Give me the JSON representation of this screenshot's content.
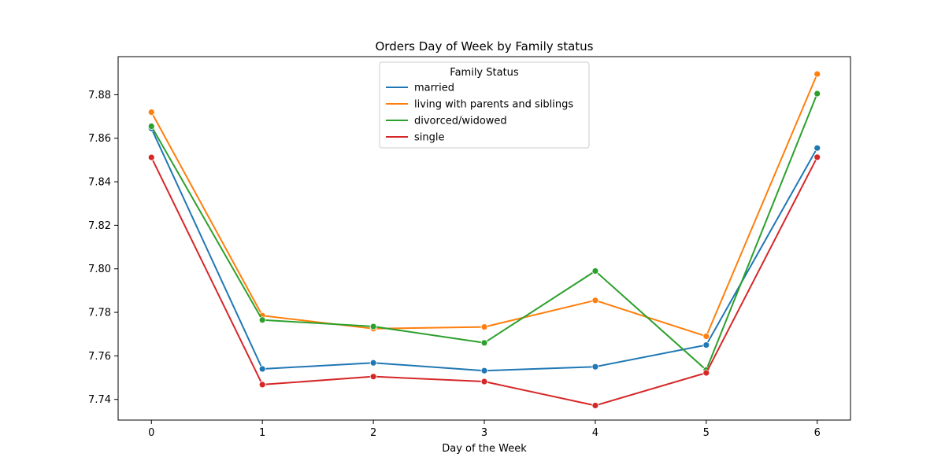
{
  "chart_data": {
    "type": "line",
    "title": "Orders Day of Week by Family status",
    "xlabel": "Day of the Week",
    "ylabel": "",
    "x": [
      0,
      1,
      2,
      3,
      4,
      5,
      6
    ],
    "xlim": [
      -0.3,
      6.3
    ],
    "ylim": [
      7.7305,
      7.8975
    ],
    "yticks": [
      7.74,
      7.76,
      7.78,
      7.8,
      7.82,
      7.84,
      7.86,
      7.88
    ],
    "ytick_labels": [
      "7.74",
      "7.76",
      "7.78",
      "7.80",
      "7.82",
      "7.84",
      "7.86",
      "7.88"
    ],
    "xtick_labels": [
      "0",
      "1",
      "2",
      "3",
      "4",
      "5",
      "6"
    ],
    "grid": false,
    "legend": {
      "title": "Family Status",
      "placement": "upper-center"
    },
    "series": [
      {
        "name": "married",
        "color": "#1f77b4",
        "values": [
          7.8645,
          7.754,
          7.7568,
          7.7532,
          7.755,
          7.765,
          7.8555
        ]
      },
      {
        "name": "living with parents and siblings",
        "color": "#ff7f0e",
        "values": [
          7.872,
          7.7785,
          7.7725,
          7.7733,
          7.7855,
          7.769,
          7.8895
        ]
      },
      {
        "name": "divorced/widowed",
        "color": "#2ca02c",
        "values": [
          7.8655,
          7.7765,
          7.7735,
          7.766,
          7.799,
          7.7535,
          7.8805
        ]
      },
      {
        "name": "single",
        "color": "#d62728",
        "values": [
          7.8512,
          7.7468,
          7.7505,
          7.7482,
          7.7372,
          7.7522,
          7.8513
        ]
      }
    ]
  }
}
